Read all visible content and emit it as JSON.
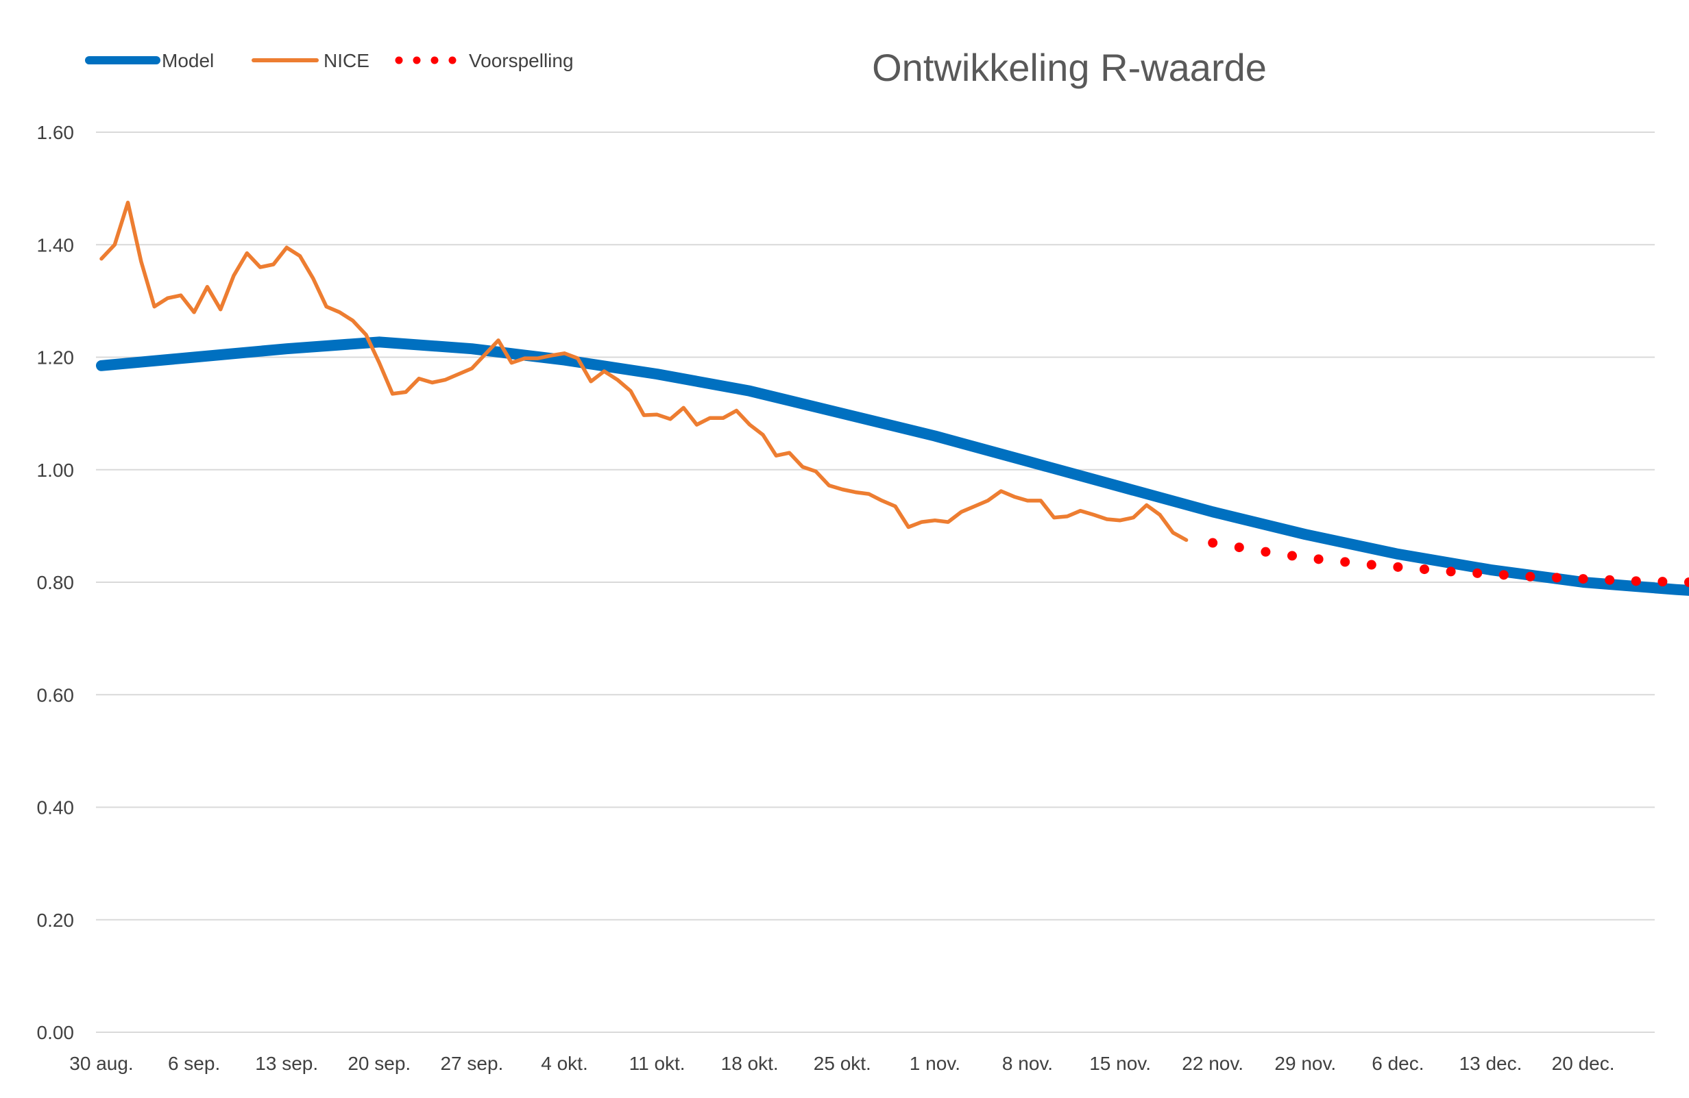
{
  "chart_data": {
    "type": "line",
    "title": "Ontwikkeling R-waarde",
    "xlabel": "",
    "ylabel": "",
    "ylim": [
      0,
      1.6
    ],
    "yticks": [
      "0.00",
      "0.20",
      "0.40",
      "0.60",
      "0.80",
      "1.00",
      "1.20",
      "1.40",
      "1.60"
    ],
    "xticks": [
      "30 aug.",
      "6 sep.",
      "13 sep.",
      "20 sep.",
      "27 sep.",
      "4 okt.",
      "11 okt.",
      "18 okt.",
      "25 okt.",
      "1 nov.",
      "8 nov.",
      "15 nov.",
      "22 nov.",
      "29 nov.",
      "6 dec.",
      "13 dec.",
      "20 dec."
    ],
    "x_start": "30 aug.",
    "x_days": 121,
    "grid": true,
    "legend_position": "top-left",
    "series": [
      {
        "name": "Model",
        "color": "#0070C0",
        "style": "solid-thick",
        "points": [
          [
            0,
            1.185
          ],
          [
            7,
            1.2
          ],
          [
            14,
            1.215
          ],
          [
            21,
            1.227
          ],
          [
            28,
            1.215
          ],
          [
            35,
            1.195
          ],
          [
            42,
            1.17
          ],
          [
            49,
            1.14
          ],
          [
            56,
            1.1
          ],
          [
            63,
            1.06
          ],
          [
            70,
            1.015
          ],
          [
            77,
            0.97
          ],
          [
            84,
            0.925
          ],
          [
            91,
            0.885
          ],
          [
            98,
            0.85
          ],
          [
            105,
            0.822
          ],
          [
            112,
            0.8
          ],
          [
            119,
            0.787
          ],
          [
            126,
            0.777
          ],
          [
            133,
            0.77
          ],
          [
            140,
            0.765
          ],
          [
            147,
            0.763
          ],
          [
            153,
            0.762
          ]
        ]
      },
      {
        "name": "NICE",
        "color": "#ED7D31",
        "style": "solid",
        "points": [
          [
            0,
            1.375
          ],
          [
            1,
            1.4
          ],
          [
            2,
            1.475
          ],
          [
            3,
            1.37
          ],
          [
            4,
            1.29
          ],
          [
            5,
            1.305
          ],
          [
            6,
            1.31
          ],
          [
            7,
            1.28
          ],
          [
            8,
            1.325
          ],
          [
            9,
            1.285
          ],
          [
            10,
            1.345
          ],
          [
            11,
            1.385
          ],
          [
            12,
            1.36
          ],
          [
            13,
            1.365
          ],
          [
            14,
            1.395
          ],
          [
            15,
            1.38
          ],
          [
            16,
            1.34
          ],
          [
            17,
            1.29
          ],
          [
            18,
            1.28
          ],
          [
            19,
            1.265
          ],
          [
            20,
            1.24
          ],
          [
            21,
            1.19
          ],
          [
            22,
            1.135
          ],
          [
            23,
            1.138
          ],
          [
            24,
            1.162
          ],
          [
            25,
            1.155
          ],
          [
            26,
            1.16
          ],
          [
            27,
            1.17
          ],
          [
            28,
            1.18
          ],
          [
            29,
            1.205
          ],
          [
            30,
            1.23
          ],
          [
            31,
            1.19
          ],
          [
            32,
            1.198
          ],
          [
            33,
            1.198
          ],
          [
            34,
            1.203
          ],
          [
            35,
            1.207
          ],
          [
            36,
            1.198
          ],
          [
            37,
            1.157
          ],
          [
            38,
            1.175
          ],
          [
            39,
            1.16
          ],
          [
            40,
            1.14
          ],
          [
            41,
            1.097
          ],
          [
            42,
            1.098
          ],
          [
            43,
            1.09
          ],
          [
            44,
            1.11
          ],
          [
            45,
            1.08
          ],
          [
            46,
            1.092
          ],
          [
            47,
            1.092
          ],
          [
            48,
            1.105
          ],
          [
            49,
            1.08
          ],
          [
            50,
            1.062
          ],
          [
            51,
            1.025
          ],
          [
            52,
            1.03
          ],
          [
            53,
            1.005
          ],
          [
            54,
            0.997
          ],
          [
            55,
            0.972
          ],
          [
            56,
            0.965
          ],
          [
            57,
            0.96
          ],
          [
            58,
            0.957
          ],
          [
            59,
            0.945
          ],
          [
            60,
            0.935
          ],
          [
            61,
            0.898
          ],
          [
            62,
            0.907
          ],
          [
            63,
            0.91
          ],
          [
            64,
            0.907
          ],
          [
            65,
            0.925
          ],
          [
            66,
            0.935
          ],
          [
            67,
            0.945
          ],
          [
            68,
            0.962
          ],
          [
            69,
            0.952
          ],
          [
            70,
            0.945
          ],
          [
            71,
            0.945
          ],
          [
            72,
            0.915
          ],
          [
            73,
            0.917
          ],
          [
            74,
            0.927
          ],
          [
            75,
            0.92
          ],
          [
            76,
            0.912
          ],
          [
            77,
            0.91
          ],
          [
            78,
            0.915
          ],
          [
            79,
            0.937
          ],
          [
            80,
            0.92
          ],
          [
            81,
            0.888
          ],
          [
            82,
            0.875
          ]
        ]
      },
      {
        "name": "Voorspelling",
        "color": "#FF0000",
        "style": "dotted",
        "points": [
          [
            84,
            0.87
          ],
          [
            86,
            0.862
          ],
          [
            88,
            0.854
          ],
          [
            90,
            0.847
          ],
          [
            92,
            0.841
          ],
          [
            94,
            0.836
          ],
          [
            96,
            0.831
          ],
          [
            98,
            0.827
          ],
          [
            100,
            0.823
          ],
          [
            102,
            0.819
          ],
          [
            104,
            0.816
          ],
          [
            106,
            0.813
          ],
          [
            108,
            0.81
          ],
          [
            110,
            0.808
          ],
          [
            112,
            0.806
          ],
          [
            114,
            0.804
          ],
          [
            116,
            0.802
          ],
          [
            118,
            0.801
          ],
          [
            120,
            0.8
          ],
          [
            122,
            0.799
          ]
        ]
      }
    ]
  }
}
